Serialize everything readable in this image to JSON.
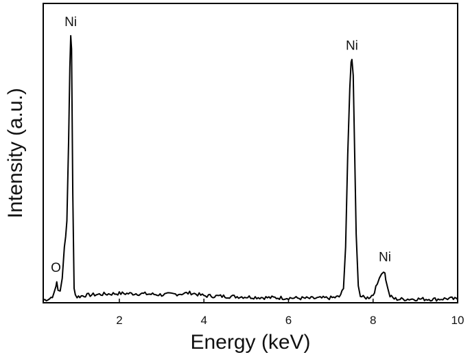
{
  "chart_data": {
    "type": "line",
    "title": "",
    "xlabel": "Energy (keV)",
    "ylabel": "Intensity (a.u.)",
    "xlim": [
      0.2,
      10
    ],
    "ylim": [
      0,
      100
    ],
    "xticks": [
      2,
      4,
      6,
      8,
      10
    ],
    "yticks_shown": false,
    "grid": false,
    "legend": "none",
    "line_color": "#000000",
    "series": [
      {
        "x": [
          0.2,
          0.35,
          0.45,
          0.5,
          0.52,
          0.55,
          0.6,
          0.65,
          0.7,
          0.73,
          0.76,
          0.8,
          0.83,
          0.85,
          0.87,
          0.9,
          0.93,
          0.96,
          1.0,
          1.2,
          1.6,
          2.0,
          2.5,
          3.0,
          3.4,
          3.7,
          4.0,
          4.5,
          5.0,
          5.5,
          6.0,
          6.5,
          7.0,
          7.2,
          7.3,
          7.35,
          7.4,
          7.45,
          7.48,
          7.5,
          7.53,
          7.56,
          7.6,
          7.65,
          7.7,
          7.8,
          7.9,
          8.0,
          8.1,
          8.15,
          8.2,
          8.25,
          8.28,
          8.3,
          8.35,
          8.4,
          8.5,
          8.6,
          9.0,
          9.5,
          9.8,
          10.0
        ],
        "y": [
          0,
          0.5,
          2,
          5,
          7,
          4,
          3,
          8,
          20,
          24,
          30,
          60,
          88,
          100,
          95,
          40,
          5,
          2,
          1.2,
          1.8,
          2.2,
          2.5,
          2.4,
          2.0,
          2.3,
          2.7,
          1.6,
          1.4,
          1.2,
          0.9,
          0.8,
          0.6,
          0.8,
          1.2,
          4,
          20,
          55,
          80,
          90,
          91,
          85,
          60,
          25,
          6,
          1.5,
          0.8,
          1.0,
          2,
          6,
          9,
          10,
          11,
          10,
          8,
          4,
          1.5,
          0.5,
          0.3,
          0.4,
          0.3,
          0.6,
          0.2
        ]
      }
    ],
    "annotations": [
      {
        "text": "O",
        "x": 0.5,
        "y": 7
      },
      {
        "text": "Ni",
        "x": 0.85,
        "y": 100
      },
      {
        "text": "Ni",
        "x": 7.5,
        "y": 91
      },
      {
        "text": "Ni",
        "x": 8.28,
        "y": 11
      }
    ]
  }
}
